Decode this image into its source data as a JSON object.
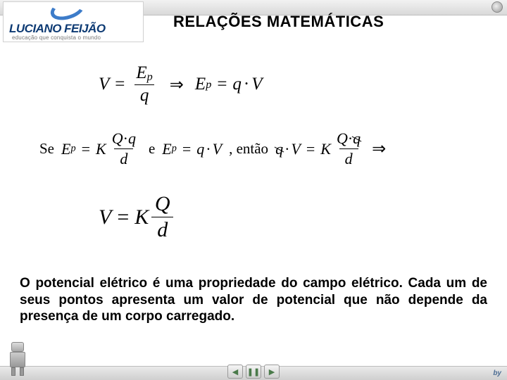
{
  "header": {
    "logo_text": "LUCIANO FEIJÃO",
    "logo_sub": "educação que conquista o mundo"
  },
  "title": "RELAÇÕES MATEMÁTICAS",
  "equations": {
    "eq1": {
      "lhs_var": "V",
      "frac_num": "E",
      "frac_num_sub": "p",
      "frac_den": "q",
      "arrow": "⇒",
      "rhs_var": "E",
      "rhs_var_sub": "p",
      "rhs_eq": "=",
      "rhs_a": "q",
      "rhs_dot": "·",
      "rhs_b": "V"
    },
    "eq2": {
      "se": "Se",
      "a_var": "E",
      "a_sub": "p",
      "a_eq": "=",
      "a_K": "K",
      "a_num1": "Q",
      "a_dot": "·",
      "a_num2": "q",
      "a_den": "d",
      "e": "e",
      "b_var": "E",
      "b_sub": "p",
      "b_eq": "=",
      "b_q": "q",
      "b_dot": "·",
      "b_V": "V",
      "entao": ", então",
      "c_q": "q",
      "c_dot": "·",
      "c_V": "V",
      "c_eq": "=",
      "c_K": "K",
      "c_num1": "Q",
      "c_num_dot": "·",
      "c_num2": "q",
      "c_den": "d",
      "arrow": "⇒"
    },
    "eq3": {
      "V": "V",
      "eq": "=",
      "K": "K",
      "num": "Q",
      "den": "d"
    }
  },
  "paragraph": "O potencial elétrico é uma propriedade do campo elétrico. Cada um de seus pontos apresenta um valor de potencial que não depende da presença de um corpo carregado.",
  "nav": {
    "prev": "◀",
    "home": "❚❚",
    "next": "▶"
  },
  "bottom_brand": "by"
}
